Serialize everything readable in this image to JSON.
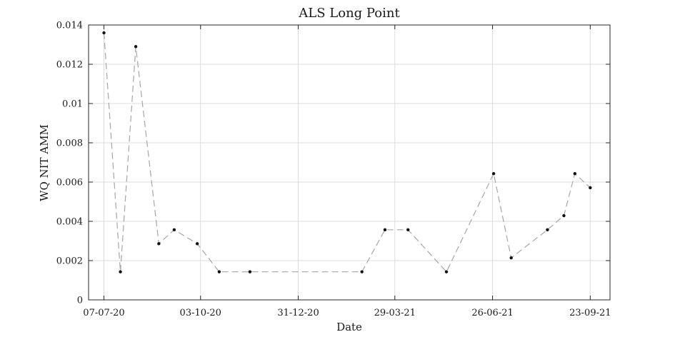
{
  "chart_data": {
    "type": "line",
    "title": "ALS Long Point",
    "xlabel": "Date",
    "ylabel": "WQ NIT AMM",
    "x_axis_type": "date",
    "xlim": [
      "2020-06-23",
      "2021-10-11"
    ],
    "ylim": [
      0,
      0.014
    ],
    "xticks": [
      {
        "date": "2020-07-07",
        "label": "07-07-20"
      },
      {
        "date": "2020-10-03",
        "label": "03-10-20"
      },
      {
        "date": "2020-12-31",
        "label": "31-12-20"
      },
      {
        "date": "2021-03-29",
        "label": "29-03-21"
      },
      {
        "date": "2021-06-26",
        "label": "26-06-21"
      },
      {
        "date": "2021-09-23",
        "label": "23-09-21"
      }
    ],
    "yticks": [
      {
        "value": 0,
        "label": "0"
      },
      {
        "value": 0.002,
        "label": "0.002"
      },
      {
        "value": 0.004,
        "label": "0.004"
      },
      {
        "value": 0.006,
        "label": "0.006"
      },
      {
        "value": 0.008,
        "label": "0.008"
      },
      {
        "value": 0.01,
        "label": "0.01"
      },
      {
        "value": 0.012,
        "label": "0.012"
      },
      {
        "value": 0.014,
        "label": "0.014"
      }
    ],
    "grid": true,
    "legend": "none",
    "series": [
      {
        "line_style": "dashed",
        "line_color": "#a6a6a6",
        "marker_color": "#111111",
        "x": [
          "2020-07-07",
          "2020-07-22",
          "2020-08-05",
          "2020-08-26",
          "2020-09-09",
          "2020-09-30",
          "2020-10-20",
          "2020-11-17",
          "2021-02-27",
          "2021-03-20",
          "2021-04-10",
          "2021-05-15",
          "2021-06-27",
          "2021-07-13",
          "2021-08-15",
          "2021-08-30",
          "2021-09-09",
          "2021-09-23"
        ],
        "y": [
          0.0136,
          0.00143,
          0.0129,
          0.00286,
          0.00357,
          0.00286,
          0.00143,
          0.00143,
          0.00143,
          0.00357,
          0.00357,
          0.00143,
          0.00643,
          0.00214,
          0.00357,
          0.00429,
          0.00643,
          0.00571
        ]
      }
    ]
  }
}
